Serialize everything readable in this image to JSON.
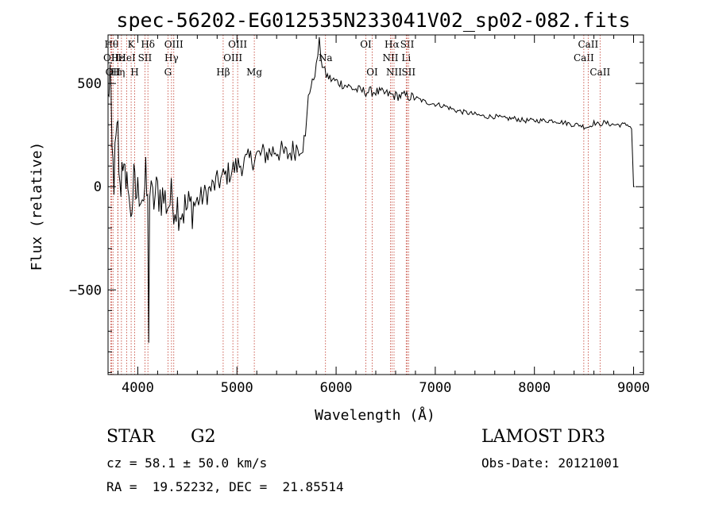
{
  "chart_data": {
    "type": "line",
    "title": "spec-56202-EG012535N233041V02_sp02-082.fits",
    "xlabel": "Wavelength (Å)",
    "ylabel": "Flux (relative)",
    "xlim": [
      3700,
      9100
    ],
    "ylim": [
      -910,
      735
    ],
    "xticks": [
      4000,
      5000,
      6000,
      7000,
      8000,
      9000
    ],
    "yticks": [
      -500,
      0,
      500
    ],
    "series": [
      {
        "name": "flux",
        "x": [
          3700,
          3720,
          3740,
          3760,
          3780,
          3800,
          3820,
          3840,
          3860,
          3880,
          3900,
          3920,
          3940,
          3960,
          3980,
          4000,
          4030,
          4060,
          4080,
          4100,
          4110,
          4120,
          4150,
          4200,
          4250,
          4300,
          4350,
          4400,
          4450,
          4500,
          4600,
          4700,
          4800,
          4900,
          5000,
          5100,
          5200,
          5300,
          5400,
          5500,
          5600,
          5690,
          5720,
          5760,
          5800,
          5830,
          5860,
          5900,
          5950,
          6000,
          6100,
          6200,
          6300,
          6400,
          6500,
          6600,
          6700,
          6800,
          6900,
          7000,
          7100,
          7200,
          7300,
          7400,
          7500,
          7600,
          7700,
          7800,
          7900,
          8000,
          8100,
          8200,
          8300,
          8400,
          8450,
          8500,
          8550,
          8600,
          8650,
          8700,
          8800,
          8900,
          8950,
          8980,
          9000,
          9010
        ],
        "values": [
          410,
          560,
          150,
          40,
          200,
          260,
          -50,
          100,
          180,
          -100,
          80,
          -150,
          -80,
          10,
          -40,
          -30,
          0,
          -40,
          30,
          -100,
          -690,
          -40,
          -80,
          -20,
          -50,
          -80,
          -60,
          -90,
          -110,
          -110,
          -70,
          -30,
          20,
          60,
          100,
          120,
          150,
          160,
          180,
          150,
          190,
          220,
          450,
          500,
          580,
          700,
          590,
          540,
          520,
          510,
          490,
          470,
          460,
          460,
          450,
          440,
          440,
          430,
          410,
          400,
          390,
          370,
          360,
          350,
          340,
          340,
          330,
          330,
          320,
          320,
          320,
          320,
          310,
          300,
          300,
          290,
          290,
          310,
          300,
          310,
          300,
          300,
          300,
          280,
          0,
          0
        ]
      }
    ],
    "lines": [
      {
        "w": 3735,
        "label": "Hθ",
        "row": 0
      },
      {
        "w": 3729,
        "label": "OII",
        "row": 1
      },
      {
        "w": 3750,
        "label": "OII",
        "row": 2
      },
      {
        "w": 3798,
        "label": "Hε",
        "row": 1
      },
      {
        "w": 3800,
        "label": "Hη",
        "row": 2
      },
      {
        "w": 3835,
        "label": "",
        "row": 3
      },
      {
        "w": 3889,
        "label": "HeI",
        "row": 1
      },
      {
        "w": 3933,
        "label": "K",
        "row": 0
      },
      {
        "w": 3968,
        "label": "H",
        "row": 2
      },
      {
        "w": 4072,
        "label": "SII",
        "row": 1
      },
      {
        "w": 4102,
        "label": "Hδ",
        "row": 0
      },
      {
        "w": 4340,
        "label": "Hγ",
        "row": 1
      },
      {
        "w": 4304,
        "label": "G",
        "row": 2
      },
      {
        "w": 4363,
        "label": "OIII",
        "row": 0
      },
      {
        "w": 4861,
        "label": "Hβ",
        "row": 2
      },
      {
        "w": 4959,
        "label": "OIII",
        "row": 1
      },
      {
        "w": 5007,
        "label": "OIII",
        "row": 0
      },
      {
        "w": 5175,
        "label": "Mg",
        "row": 2
      },
      {
        "w": 5893,
        "label": "Na",
        "row": 1
      },
      {
        "w": 6300,
        "label": "OI",
        "row": 0
      },
      {
        "w": 6364,
        "label": "OI",
        "row": 2
      },
      {
        "w": 6548,
        "label": "NII",
        "row": 1
      },
      {
        "w": 6563,
        "label": "Hα",
        "row": 0
      },
      {
        "w": 6584,
        "label": "NII",
        "row": 2
      },
      {
        "w": 6707,
        "label": "Li",
        "row": 1
      },
      {
        "w": 6717,
        "label": "SII",
        "row": 0
      },
      {
        "w": 6731,
        "label": "SII",
        "row": 2
      },
      {
        "w": 8498,
        "label": "CaII",
        "row": 1
      },
      {
        "w": 8542,
        "label": "CaII",
        "row": 0
      },
      {
        "w": 8662,
        "label": "CaII",
        "row": 2
      }
    ]
  },
  "info": {
    "class": "STAR",
    "subclass": "G2",
    "survey": "LAMOST DR3",
    "cz": "cz = 58.1 ± 50.0 km/s",
    "obs_date": "Obs-Date: 20121001",
    "coords": "RA =  19.52232, DEC =  21.85514"
  }
}
